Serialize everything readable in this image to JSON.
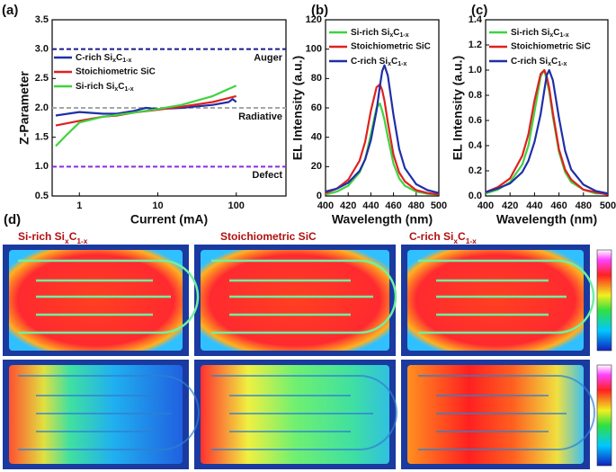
{
  "chart_data": [
    {
      "type": "line",
      "panel_label": "(a)",
      "x_label": "Current (mA)",
      "y_label": "Z-Parameter",
      "xscale": "log",
      "xlim": [
        0.45,
        430
      ],
      "xticks": [
        1,
        10,
        100
      ],
      "ylim": [
        0.5,
        3.5
      ],
      "yticks": [
        0.5,
        {
          "value": 1,
          "label": "1.0"
        },
        1.5,
        {
          "value": 2,
          "label": "2.0"
        },
        2.5,
        {
          "value": 3,
          "label": "3.0"
        },
        3.5
      ],
      "legend": "upper left",
      "reference_lines": [
        {
          "value": 3,
          "label": "Auger",
          "color": "#1a1a8c"
        },
        {
          "value": 2,
          "label": "Radiative",
          "color": "#a6a6a6"
        },
        {
          "value": 1,
          "label": "Defect",
          "color": "#8a2be2"
        }
      ],
      "series": [
        {
          "name": "C-rich SixC1-x",
          "color": "#1f2fa8",
          "x": [
            0.5,
            1,
            2,
            3,
            5,
            7,
            10,
            20,
            50,
            80,
            90,
            100
          ],
          "values": [
            1.87,
            1.93,
            1.9,
            1.9,
            1.95,
            2.0,
            1.98,
            2.0,
            2.05,
            2.1,
            2.15,
            2.1
          ]
        },
        {
          "name": "Stoichiometric SiC",
          "color": "#e02020",
          "x": [
            0.5,
            1,
            2,
            3,
            5,
            10,
            20,
            50,
            100
          ],
          "values": [
            1.7,
            1.78,
            1.85,
            1.87,
            1.92,
            1.97,
            2.02,
            2.1,
            2.2
          ]
        },
        {
          "name": "Si-rich SixC1-x",
          "color": "#3fd33f",
          "x": [
            0.5,
            0.7,
            1,
            2,
            3,
            5,
            10,
            20,
            50,
            100
          ],
          "values": [
            1.35,
            1.55,
            1.75,
            1.85,
            1.88,
            1.92,
            1.98,
            2.05,
            2.2,
            2.38
          ]
        }
      ]
    },
    {
      "type": "line",
      "panel_label": "(b)",
      "x_label": "Wavelength (nm)",
      "y_label": "EL Intensity (a.u.)",
      "xlim": [
        400,
        500
      ],
      "xticks": [
        400,
        420,
        440,
        460,
        480,
        500
      ],
      "ylim": [
        0,
        120
      ],
      "yticks": [
        0,
        20,
        40,
        60,
        80,
        100,
        120
      ],
      "legend": "upper left",
      "x": [
        400,
        410,
        420,
        430,
        435,
        440,
        445,
        448,
        450,
        452,
        455,
        460,
        465,
        470,
        480,
        490,
        500
      ],
      "series": [
        {
          "name": "Si-rich SixC1-x",
          "color": "#3fd33f",
          "values": [
            1,
            3,
            7,
            16,
            25,
            42,
            60,
            63,
            58,
            52,
            40,
            22,
            12,
            7,
            3,
            1.5,
            1
          ]
        },
        {
          "name": "Stoichiometric SiC",
          "color": "#e02020",
          "values": [
            2,
            5,
            11,
            24,
            37,
            58,
            74,
            76,
            72,
            65,
            50,
            28,
            16,
            10,
            4,
            2,
            1
          ]
        },
        {
          "name": "C-rich SixC1-x",
          "color": "#1f2fa8",
          "values": [
            3,
            5,
            9,
            17,
            25,
            38,
            58,
            75,
            85,
            89,
            82,
            55,
            32,
            19,
            8,
            4,
            2
          ]
        }
      ]
    },
    {
      "type": "line",
      "panel_label": "(c)",
      "x_label": "Wavelength (nm)",
      "y_label": "EL Intensity (a.u.)",
      "xlim": [
        400,
        500
      ],
      "xticks": [
        400,
        420,
        440,
        460,
        480,
        500
      ],
      "ylim": [
        0,
        1.4
      ],
      "yticks": [
        {
          "value": 0,
          "label": "0.0"
        },
        0.2,
        0.4,
        0.6,
        0.8,
        {
          "value": 1,
          "label": "1.0"
        },
        1.2,
        1.4
      ],
      "legend": "upper left",
      "x": [
        400,
        410,
        420,
        430,
        435,
        440,
        445,
        448,
        450,
        452,
        455,
        460,
        465,
        470,
        480,
        490,
        500
      ],
      "series": [
        {
          "name": "Si-rich SixC1-x",
          "color": "#3fd33f",
          "values": [
            0.02,
            0.05,
            0.11,
            0.25,
            0.4,
            0.67,
            0.95,
            1.0,
            0.92,
            0.83,
            0.63,
            0.35,
            0.19,
            0.11,
            0.05,
            0.02,
            0.02
          ]
        },
        {
          "name": "Stoichiometric SiC",
          "color": "#e02020",
          "values": [
            0.03,
            0.07,
            0.14,
            0.32,
            0.49,
            0.76,
            0.97,
            1.0,
            0.95,
            0.86,
            0.66,
            0.37,
            0.21,
            0.13,
            0.05,
            0.03,
            0.01
          ]
        },
        {
          "name": "C-rich SixC1-x",
          "color": "#1f2fa8",
          "values": [
            0.03,
            0.06,
            0.1,
            0.19,
            0.28,
            0.43,
            0.65,
            0.84,
            0.96,
            1.0,
            0.92,
            0.62,
            0.36,
            0.21,
            0.09,
            0.04,
            0.02
          ]
        }
      ]
    }
  ],
  "panel_d": {
    "label": "(d)",
    "titles": [
      "Si-rich SixC1-x",
      "Stoichiometric SiC",
      "C-rich SixC1-x"
    ]
  }
}
